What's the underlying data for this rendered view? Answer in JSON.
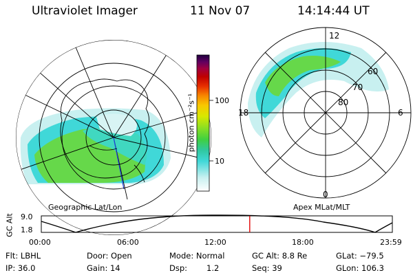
{
  "header": {
    "instrument": "Ultraviolet Imager",
    "date": "11 Nov 07",
    "time": "14:14:44 UT"
  },
  "left_panel": {
    "label": "Geographic Lat/Lon"
  },
  "right_panel": {
    "label": "Apex MLat/MLT",
    "lat_labels": [
      "60",
      "70",
      "80"
    ],
    "mlt_labels": {
      "top": "12",
      "left": "18",
      "right": "6",
      "bottom": "0"
    }
  },
  "colorbar": {
    "unit_label": "photon cm⁻²s⁻¹",
    "tick_labels": [
      "100",
      "10"
    ],
    "range": [
      1,
      1000
    ],
    "scale": "log",
    "colors": [
      "#ffffff",
      "#c8f0f0",
      "#40d8d8",
      "#30c8a0",
      "#40d040",
      "#90e020",
      "#d8e800",
      "#f8c800",
      "#f88800",
      "#e83000",
      "#c00000",
      "#a00040",
      "#600060",
      "#200040"
    ]
  },
  "altitude_plot": {
    "ylabel": "GC Alt",
    "y_ticks": [
      "9.0",
      "1.8"
    ],
    "x_ticks": [
      "00:00",
      "06:00",
      "12:00",
      "18:00",
      "23:59"
    ],
    "current_time_hours": 14.25,
    "marker_color": "#e00000"
  },
  "status": {
    "flt": "Flt: LBHL",
    "door": "Door: Open",
    "mode": "Mode: Normal",
    "gc_alt": "GC Alt: 8.8 Re",
    "glat": "GLat: −79.5",
    "ip": "IP: 36.0",
    "gain": "Gain: 14",
    "dsp_label": "Dsp:",
    "dsp_value": "1.2",
    "seq": "Seq: 39",
    "glon": "GLon: 106.3"
  }
}
